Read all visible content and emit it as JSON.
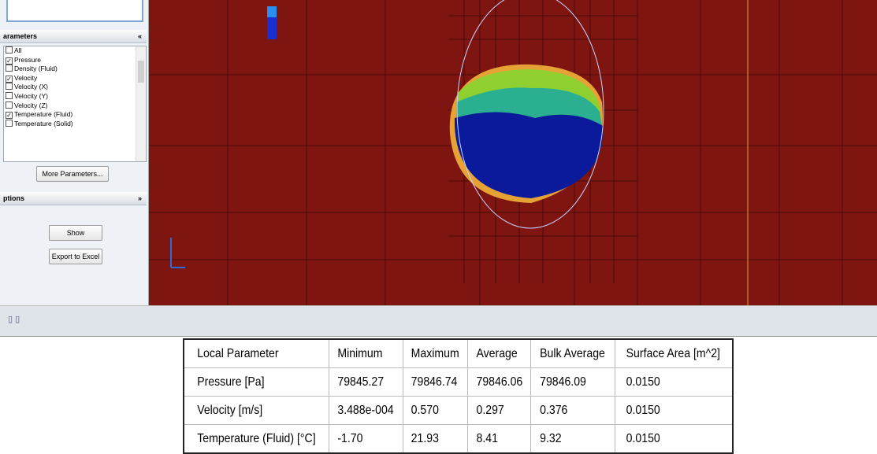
{
  "panel": {
    "parameters_header": "arameters",
    "parameters": [
      {
        "label": "All",
        "checked": false
      },
      {
        "label": "Pressure",
        "checked": true
      },
      {
        "label": "Density (Fluid)",
        "checked": false
      },
      {
        "label": "Velocity",
        "checked": true
      },
      {
        "label": "Velocity (X)",
        "checked": false
      },
      {
        "label": "Velocity (Y)",
        "checked": false
      },
      {
        "label": "Velocity (Z)",
        "checked": false
      },
      {
        "label": "Temperature (Fluid)",
        "checked": true
      },
      {
        "label": "Temperature (Solid)",
        "checked": false
      }
    ],
    "more_button": "More Parameters...",
    "options_header": "ptions",
    "show_button": "Show",
    "export_button": "Export to Excel"
  },
  "table": {
    "header": [
      "Local Parameter",
      "Minimum",
      "Maximum",
      "Average",
      "Bulk Average",
      "Surface Area [m^2]"
    ],
    "rows": [
      [
        "Pressure [Pa]",
        "79845.27",
        "79846.74",
        "79846.06",
        "79846.09",
        "0.0150"
      ],
      [
        "Velocity [m/s]",
        "3.488e-004",
        "0.570",
        "0.297",
        "0.376",
        "0.0150"
      ],
      [
        "Temperature (Fluid) [°C]",
        "-1.70",
        "21.93",
        "8.41",
        "9.32",
        "0.0150"
      ]
    ]
  }
}
